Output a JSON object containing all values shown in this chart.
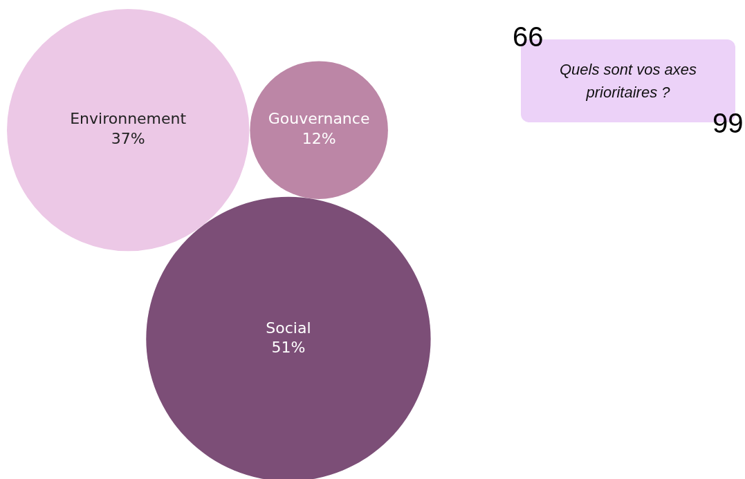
{
  "chart_data": {
    "type": "other",
    "title": "Quels sont vos axes prioritaires ?",
    "categories": [
      "Environnement",
      "Gouvernance",
      "Social"
    ],
    "values": [
      37,
      12,
      51
    ],
    "value_labels": [
      "37%",
      "12%",
      "51%"
    ],
    "colors": [
      "#ecc8e6",
      "#bc86a6",
      "#7c4e77"
    ],
    "annotations": [
      "66",
      "99"
    ]
  }
}
